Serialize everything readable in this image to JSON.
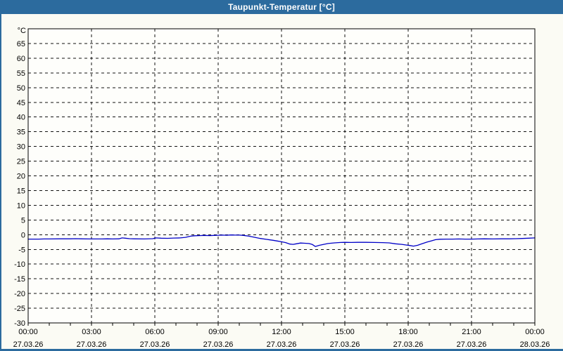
{
  "window": {
    "title": "Taupunkt-Temperatur [°C]"
  },
  "colors": {
    "titlebar": "#2c6b9e",
    "border": "#2c6b9e",
    "window_background": "#fbfbf4",
    "plot_background": "#fefefb",
    "grid": "#111111",
    "axis": "#000000",
    "line": "#0000c8",
    "title_text": "#ffffff",
    "label_text": "#000000"
  },
  "chart_data": {
    "type": "line",
    "title": "Taupunkt-Temperatur [°C]",
    "ylabel": "°C",
    "unit_label": "°C",
    "ylim": [
      -30,
      70
    ],
    "y_ticks": [
      65,
      60,
      55,
      50,
      45,
      40,
      35,
      30,
      25,
      20,
      15,
      10,
      5,
      0,
      -5,
      -10,
      -15,
      -20,
      -25,
      -30
    ],
    "x_hours_range": [
      0,
      24
    ],
    "minor_tick_interval_hours": 1,
    "grid": "dashed",
    "legend": "none",
    "x_major_ticks": [
      {
        "hour": 0,
        "time": "00:00",
        "date": "27.03.26"
      },
      {
        "hour": 3,
        "time": "03:00",
        "date": "27.03.26"
      },
      {
        "hour": 6,
        "time": "06:00",
        "date": "27.03.26"
      },
      {
        "hour": 9,
        "time": "09:00",
        "date": "27.03.26"
      },
      {
        "hour": 12,
        "time": "12:00",
        "date": "27.03.26"
      },
      {
        "hour": 15,
        "time": "15:00",
        "date": "27.03.26"
      },
      {
        "hour": 18,
        "time": "18:00",
        "date": "27.03.26"
      },
      {
        "hour": 21,
        "time": "21:00",
        "date": "27.03.26"
      },
      {
        "hour": 24,
        "time": "00:00",
        "date": "28.03.26"
      }
    ],
    "series": [
      {
        "name": "Taupunkt-Temperatur",
        "color": "#0000c8",
        "points": [
          [
            0,
            -1.5
          ],
          [
            0.5,
            -1.5
          ],
          [
            0.75,
            -1.45
          ],
          [
            1,
            -1.45
          ],
          [
            1.5,
            -1.4
          ],
          [
            2,
            -1.4
          ],
          [
            2.25,
            -1.35
          ],
          [
            2.5,
            -1.4
          ],
          [
            3,
            -1.45
          ],
          [
            3.5,
            -1.45
          ],
          [
            3.75,
            -1.4
          ],
          [
            4,
            -1.45
          ],
          [
            4.3,
            -1.4
          ],
          [
            4.45,
            -1.1
          ],
          [
            4.6,
            -1.2
          ],
          [
            4.8,
            -1.35
          ],
          [
            5,
            -1.4
          ],
          [
            5.5,
            -1.45
          ],
          [
            5.9,
            -1.35
          ],
          [
            6.05,
            -1.1
          ],
          [
            6.3,
            -1.2
          ],
          [
            6.6,
            -1.25
          ],
          [
            6.9,
            -1.15
          ],
          [
            7.2,
            -1.1
          ],
          [
            7.45,
            -0.9
          ],
          [
            7.7,
            -0.5
          ],
          [
            7.9,
            -0.35
          ],
          [
            8.1,
            -0.3
          ],
          [
            8.35,
            -0.25
          ],
          [
            8.6,
            -0.3
          ],
          [
            8.8,
            -0.25
          ],
          [
            9,
            -0.2
          ],
          [
            9.2,
            -0.15
          ],
          [
            9.4,
            -0.2
          ],
          [
            9.6,
            -0.1
          ],
          [
            9.8,
            -0.15
          ],
          [
            10,
            -0.15
          ],
          [
            10.2,
            -0.25
          ],
          [
            10.45,
            -0.5
          ],
          [
            10.7,
            -0.85
          ],
          [
            11,
            -1.3
          ],
          [
            11.3,
            -1.6
          ],
          [
            11.6,
            -1.9
          ],
          [
            11.8,
            -2.15
          ],
          [
            12,
            -2.4
          ],
          [
            12.2,
            -2.7
          ],
          [
            12.4,
            -3.2
          ],
          [
            12.55,
            -3.3
          ],
          [
            12.7,
            -3.1
          ],
          [
            12.9,
            -2.85
          ],
          [
            13.1,
            -2.9
          ],
          [
            13.3,
            -3.0
          ],
          [
            13.45,
            -3.3
          ],
          [
            13.6,
            -4.0
          ],
          [
            13.8,
            -3.6
          ],
          [
            14,
            -3.3
          ],
          [
            14.2,
            -3.0
          ],
          [
            14.5,
            -2.8
          ],
          [
            14.8,
            -2.65
          ],
          [
            15,
            -2.6
          ],
          [
            15.3,
            -2.65
          ],
          [
            15.6,
            -2.6
          ],
          [
            16,
            -2.6
          ],
          [
            16.4,
            -2.65
          ],
          [
            16.8,
            -2.7
          ],
          [
            17.1,
            -2.8
          ],
          [
            17.4,
            -3.1
          ],
          [
            17.7,
            -3.3
          ],
          [
            17.9,
            -3.5
          ],
          [
            18.1,
            -3.7
          ],
          [
            18.25,
            -3.9
          ],
          [
            18.45,
            -3.6
          ],
          [
            18.65,
            -3.1
          ],
          [
            18.9,
            -2.5
          ],
          [
            19.1,
            -2.1
          ],
          [
            19.3,
            -1.7
          ],
          [
            19.5,
            -1.55
          ],
          [
            19.8,
            -1.5
          ],
          [
            20.1,
            -1.5
          ],
          [
            20.4,
            -1.45
          ],
          [
            20.7,
            -1.5
          ],
          [
            21,
            -1.5
          ],
          [
            21.3,
            -1.45
          ],
          [
            21.6,
            -1.4
          ],
          [
            22,
            -1.45
          ],
          [
            22.4,
            -1.4
          ],
          [
            22.8,
            -1.4
          ],
          [
            23.1,
            -1.35
          ],
          [
            23.4,
            -1.3
          ],
          [
            23.7,
            -1.2
          ],
          [
            24,
            -1.1
          ]
        ]
      }
    ]
  }
}
